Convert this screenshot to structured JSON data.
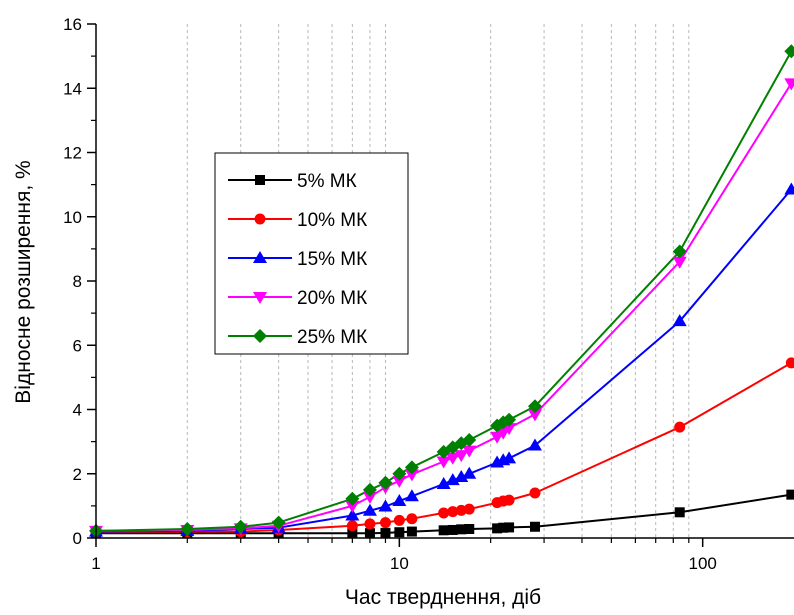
{
  "chart_data": {
    "type": "line",
    "title": "",
    "xlabel": "Час тверднення, діб",
    "ylabel": "Відносне розширення, %",
    "xscale": "log",
    "xlim": [
      1,
      200
    ],
    "ylim": [
      0,
      16
    ],
    "x_ticks": [
      1,
      10,
      100
    ],
    "x_tick_labels": [
      "1",
      "10",
      "100"
    ],
    "y_ticks": [
      0,
      2,
      4,
      6,
      8,
      10,
      12,
      14,
      16
    ],
    "y_tick_labels": [
      "0",
      "2",
      "4",
      "6",
      "8",
      "10",
      "12",
      "14",
      "16"
    ],
    "grid": "vertical minor dashed",
    "legend_position": "center-left",
    "series": [
      {
        "name": "5% МК",
        "color": "#000000",
        "marker": "square",
        "x": [
          1,
          2,
          3,
          4,
          7,
          8,
          9,
          10,
          11,
          14,
          15,
          16,
          17,
          21,
          22,
          23,
          28,
          84,
          196
        ],
        "y": [
          0.15,
          0.15,
          0.15,
          0.15,
          0.15,
          0.15,
          0.16,
          0.18,
          0.2,
          0.24,
          0.25,
          0.27,
          0.28,
          0.3,
          0.32,
          0.33,
          0.35,
          0.8,
          1.35
        ]
      },
      {
        "name": "10% МК",
        "color": "#ff0000",
        "marker": "circle",
        "x": [
          1,
          2,
          3,
          4,
          7,
          8,
          9,
          10,
          11,
          14,
          15,
          16,
          17,
          21,
          22,
          23,
          28,
          84,
          196
        ],
        "y": [
          0.18,
          0.2,
          0.2,
          0.25,
          0.38,
          0.44,
          0.48,
          0.55,
          0.6,
          0.78,
          0.82,
          0.86,
          0.9,
          1.1,
          1.15,
          1.18,
          1.4,
          3.45,
          5.45
        ]
      },
      {
        "name": "15% МК",
        "color": "#0000ff",
        "marker": "triangle-up",
        "x": [
          1,
          2,
          3,
          4,
          7,
          8,
          9,
          10,
          11,
          14,
          15,
          16,
          17,
          21,
          22,
          23,
          28,
          84,
          196
        ],
        "y": [
          0.2,
          0.22,
          0.28,
          0.32,
          0.7,
          0.85,
          0.98,
          1.15,
          1.3,
          1.68,
          1.8,
          1.9,
          2.0,
          2.35,
          2.42,
          2.48,
          2.88,
          6.75,
          10.85
        ]
      },
      {
        "name": "20% МК",
        "color": "#ff00ff",
        "marker": "triangle-down",
        "x": [
          1,
          2,
          3,
          4,
          7,
          8,
          9,
          10,
          11,
          14,
          15,
          16,
          17,
          21,
          22,
          23,
          28,
          84,
          196
        ],
        "y": [
          0.22,
          0.25,
          0.3,
          0.38,
          1.0,
          1.28,
          1.58,
          1.78,
          1.98,
          2.38,
          2.5,
          2.58,
          2.72,
          3.15,
          3.28,
          3.42,
          3.85,
          8.6,
          14.15
        ]
      },
      {
        "name": "25% МК",
        "color": "#008000",
        "marker": "diamond",
        "x": [
          1,
          2,
          3,
          4,
          7,
          8,
          9,
          10,
          11,
          14,
          15,
          16,
          17,
          21,
          22,
          23,
          28,
          84,
          196
        ],
        "y": [
          0.22,
          0.28,
          0.35,
          0.48,
          1.22,
          1.5,
          1.72,
          2.0,
          2.2,
          2.68,
          2.82,
          2.95,
          3.05,
          3.5,
          3.6,
          3.68,
          4.1,
          8.92,
          15.15
        ]
      }
    ]
  }
}
